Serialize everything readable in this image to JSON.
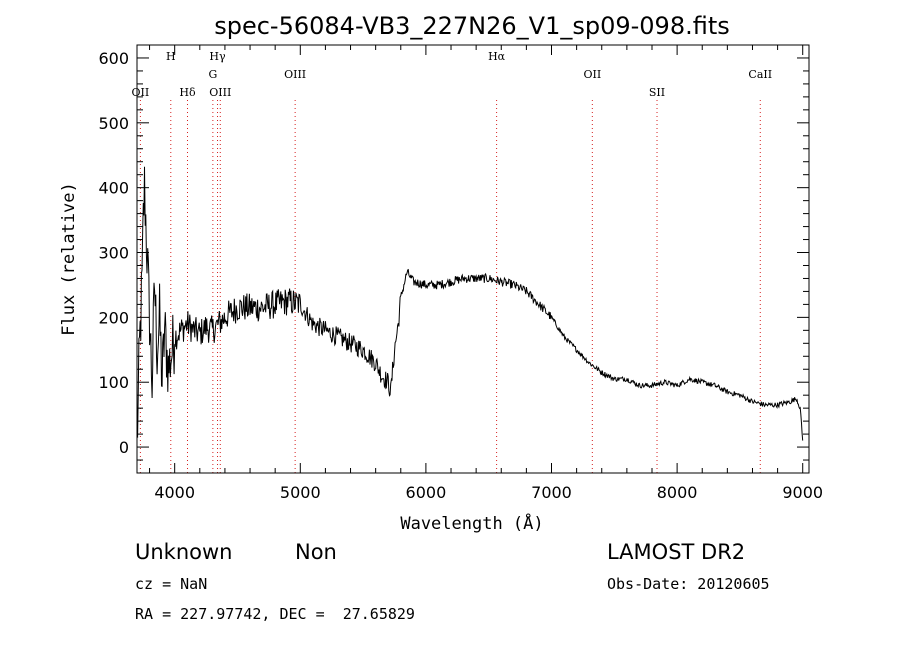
{
  "chart_data": {
    "type": "line",
    "title": "spec-56084-VB3_227N26_V1_sp09-098.fits",
    "xlabel": "Wavelength (Å)",
    "ylabel": "Flux (relative)",
    "xlim": [
      3700,
      9050
    ],
    "ylim": [
      -40,
      620
    ],
    "xticks": [
      4000,
      5000,
      6000,
      7000,
      8000,
      9000
    ],
    "yticks": [
      0,
      100,
      200,
      300,
      400,
      500,
      600
    ],
    "grid": false,
    "line_color": "#000000",
    "marker_color": "#d62020",
    "spectral_lines": [
      {
        "name": "OII",
        "wavelength": 3727,
        "row": 2
      },
      {
        "name": "H",
        "wavelength": 3969,
        "row": 0
      },
      {
        "name": "Hδ",
        "wavelength": 4102,
        "row": 2
      },
      {
        "name": "Hγ",
        "wavelength": 4341,
        "row": 0
      },
      {
        "name": "G",
        "wavelength": 4304,
        "row": 1
      },
      {
        "name": "OIII",
        "wavelength": 4363,
        "row": 2
      },
      {
        "name": "OIII",
        "wavelength": 4959,
        "row": 1
      },
      {
        "name": "Hα",
        "wavelength": 6563,
        "row": 0
      },
      {
        "name": "OII",
        "wavelength": 7325,
        "row": 1
      },
      {
        "name": "SII",
        "wavelength": 7840,
        "row": 2
      },
      {
        "name": "CaII",
        "wavelength": 8662,
        "row": 1
      }
    ],
    "series": [
      {
        "x": [
          3700,
          3720,
          3740,
          3750,
          3760,
          3780,
          3800,
          3820,
          3840,
          3860,
          3880,
          3900,
          3920,
          3950,
          4000,
          4050,
          4100,
          4150,
          4200,
          4250,
          4300,
          4350,
          4400,
          4500,
          4600,
          4700,
          4800,
          4900,
          5000,
          5100,
          5200,
          5300,
          5400,
          5500,
          5600,
          5650,
          5700,
          5720,
          5750,
          5780,
          5800,
          5850,
          5900,
          6000,
          6100,
          6200,
          6300,
          6400,
          6500,
          6600,
          6700,
          6800,
          6900,
          7000,
          7100,
          7200,
          7300,
          7400,
          7500,
          7600,
          7700,
          7800,
          7900,
          8000,
          8100,
          8200,
          8300,
          8400,
          8500,
          8600,
          8700,
          8800,
          8900,
          8950,
          8980,
          9000
        ],
        "y": [
          0,
          150,
          250,
          350,
          400,
          300,
          200,
          100,
          250,
          150,
          200,
          100,
          180,
          120,
          170,
          180,
          190,
          180,
          175,
          185,
          180,
          190,
          200,
          215,
          215,
          215,
          220,
          225,
          220,
          190,
          180,
          170,
          160,
          150,
          130,
          110,
          100,
          85,
          150,
          190,
          230,
          270,
          255,
          250,
          250,
          255,
          260,
          260,
          260,
          255,
          250,
          240,
          220,
          200,
          170,
          150,
          130,
          115,
          105,
          105,
          95,
          95,
          100,
          95,
          105,
          100,
          95,
          85,
          80,
          70,
          65,
          65,
          70,
          75,
          60,
          10
        ]
      }
    ]
  },
  "info": {
    "class": "Unknown",
    "subclass": "Non",
    "survey": "LAMOST DR2",
    "cz": "cz = NaN",
    "obs_date": "Obs-Date: 20120605",
    "coords": "RA = 227.97742, DEC =  27.65829"
  }
}
